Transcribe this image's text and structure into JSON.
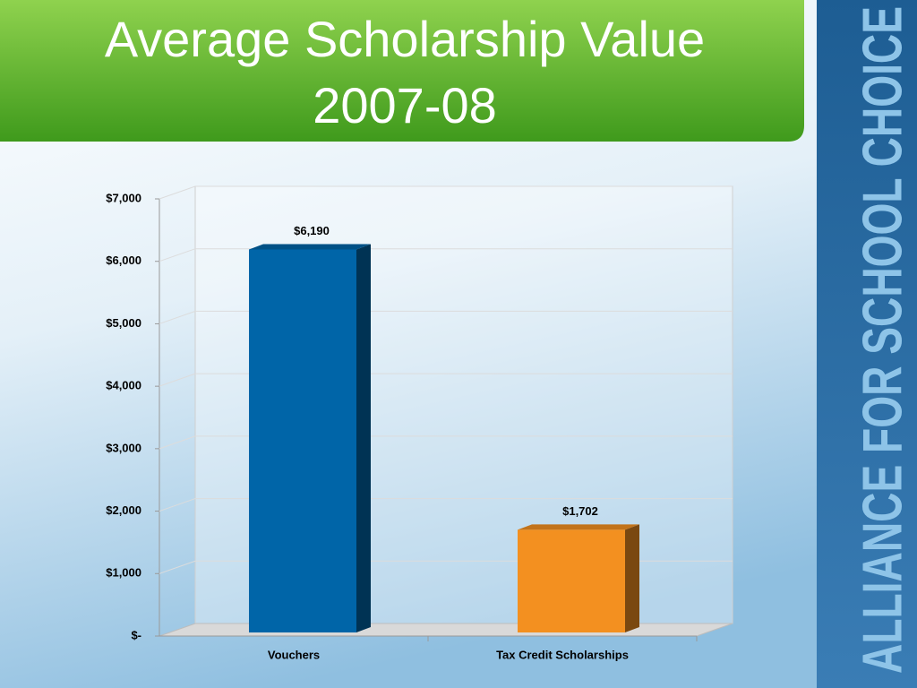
{
  "chart_data": {
    "type": "bar3d",
    "title": "Average Scholarship Value",
    "subtitle": "2007-08",
    "categories": [
      "Vouchers",
      "Tax Credit Scholarships"
    ],
    "values": [
      6190,
      1702
    ],
    "value_labels": [
      "$6,190",
      "$1,702"
    ],
    "colors": [
      "#0065a8",
      "#f39020"
    ],
    "ylim": [
      0,
      7000
    ],
    "yticks": [
      {
        "value": 0,
        "label": "$-"
      },
      {
        "value": 1000,
        "label": "$1,000"
      },
      {
        "value": 2000,
        "label": "$2,000"
      },
      {
        "value": 3000,
        "label": "$3,000"
      },
      {
        "value": 4000,
        "label": "$4,000"
      },
      {
        "value": 5000,
        "label": "$5,000"
      },
      {
        "value": 6000,
        "label": "$6,000"
      },
      {
        "value": 7000,
        "label": "$7,000"
      }
    ],
    "grid": true
  },
  "brand": "ALLIANCE FOR SCHOOL CHOICE"
}
